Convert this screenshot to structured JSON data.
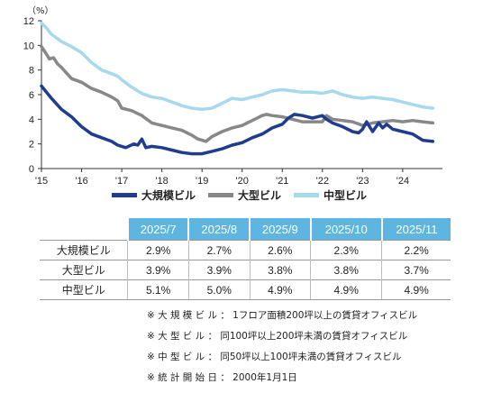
{
  "chart_data": {
    "type": "line",
    "unit_label": "（%）",
    "x_ticks": [
      "'15",
      "'16",
      "'17",
      "'18",
      "'19",
      "'20",
      "'21",
      "'22",
      "'23",
      "'24"
    ],
    "ylim": [
      0,
      12
    ],
    "y_ticks": [
      0,
      2,
      4,
      6,
      8,
      10,
      12
    ],
    "grid": false,
    "legend_position": "bottom",
    "series": [
      {
        "name": "大規模ビル",
        "color": "#1f3c8f",
        "points": [
          [
            2015.0,
            6.7
          ],
          [
            2015.25,
            5.7
          ],
          [
            2015.5,
            4.8
          ],
          [
            2015.75,
            4.2
          ],
          [
            2016.0,
            3.4
          ],
          [
            2016.25,
            2.8
          ],
          [
            2016.5,
            2.5
          ],
          [
            2016.75,
            2.2
          ],
          [
            2016.9,
            1.9
          ],
          [
            2017.1,
            1.7
          ],
          [
            2017.3,
            2.0
          ],
          [
            2017.4,
            1.9
          ],
          [
            2017.5,
            2.4
          ],
          [
            2017.6,
            1.7
          ],
          [
            2017.75,
            1.8
          ],
          [
            2018.0,
            1.7
          ],
          [
            2018.25,
            1.5
          ],
          [
            2018.5,
            1.3
          ],
          [
            2018.75,
            1.2
          ],
          [
            2019.0,
            1.2
          ],
          [
            2019.25,
            1.4
          ],
          [
            2019.5,
            1.6
          ],
          [
            2019.75,
            1.9
          ],
          [
            2020.0,
            2.1
          ],
          [
            2020.25,
            2.5
          ],
          [
            2020.5,
            2.8
          ],
          [
            2020.75,
            3.3
          ],
          [
            2021.0,
            3.6
          ],
          [
            2021.15,
            4.1
          ],
          [
            2021.3,
            4.4
          ],
          [
            2021.5,
            4.3
          ],
          [
            2021.75,
            4.1
          ],
          [
            2022.0,
            4.3
          ],
          [
            2022.1,
            4.0
          ],
          [
            2022.25,
            3.7
          ],
          [
            2022.5,
            3.4
          ],
          [
            2022.75,
            3.0
          ],
          [
            2022.9,
            2.9
          ],
          [
            2023.0,
            3.2
          ],
          [
            2023.1,
            3.8
          ],
          [
            2023.25,
            3.0
          ],
          [
            2023.4,
            3.7
          ],
          [
            2023.5,
            3.3
          ],
          [
            2023.6,
            3.6
          ],
          [
            2023.75,
            3.2
          ],
          [
            2024.0,
            3.0
          ],
          [
            2024.25,
            2.8
          ],
          [
            2024.5,
            2.3
          ],
          [
            2024.75,
            2.2
          ]
        ]
      },
      {
        "name": "大型ビル",
        "color": "#888888",
        "points": [
          [
            2015.0,
            9.9
          ],
          [
            2015.1,
            9.4
          ],
          [
            2015.2,
            8.9
          ],
          [
            2015.3,
            9.0
          ],
          [
            2015.4,
            8.5
          ],
          [
            2015.5,
            8.2
          ],
          [
            2015.75,
            7.3
          ],
          [
            2016.0,
            7.0
          ],
          [
            2016.25,
            6.5
          ],
          [
            2016.5,
            6.2
          ],
          [
            2016.75,
            5.8
          ],
          [
            2016.9,
            5.5
          ],
          [
            2017.0,
            4.9
          ],
          [
            2017.25,
            4.7
          ],
          [
            2017.5,
            4.3
          ],
          [
            2017.75,
            3.7
          ],
          [
            2018.0,
            3.5
          ],
          [
            2018.25,
            3.3
          ],
          [
            2018.5,
            3.1
          ],
          [
            2018.75,
            2.7
          ],
          [
            2018.9,
            2.4
          ],
          [
            2019.0,
            2.3
          ],
          [
            2019.1,
            2.2
          ],
          [
            2019.25,
            2.6
          ],
          [
            2019.5,
            3.0
          ],
          [
            2019.75,
            3.3
          ],
          [
            2020.0,
            3.5
          ],
          [
            2020.25,
            3.9
          ],
          [
            2020.5,
            4.3
          ],
          [
            2020.6,
            4.4
          ],
          [
            2020.75,
            4.3
          ],
          [
            2021.0,
            4.2
          ],
          [
            2021.25,
            4.0
          ],
          [
            2021.5,
            3.8
          ],
          [
            2021.75,
            3.8
          ],
          [
            2022.0,
            3.8
          ],
          [
            2022.1,
            4.3
          ],
          [
            2022.25,
            4.0
          ],
          [
            2022.5,
            3.9
          ],
          [
            2022.75,
            3.8
          ],
          [
            2023.0,
            3.5
          ],
          [
            2023.25,
            3.7
          ],
          [
            2023.5,
            3.8
          ],
          [
            2023.75,
            3.9
          ],
          [
            2024.0,
            3.8
          ],
          [
            2024.25,
            3.9
          ],
          [
            2024.5,
            3.8
          ],
          [
            2024.75,
            3.7
          ]
        ]
      },
      {
        "name": "中型ビル",
        "color": "#a6d8ee",
        "points": [
          [
            2015.0,
            11.8
          ],
          [
            2015.1,
            11.5
          ],
          [
            2015.25,
            10.9
          ],
          [
            2015.5,
            10.3
          ],
          [
            2015.75,
            9.9
          ],
          [
            2016.0,
            9.4
          ],
          [
            2016.25,
            8.6
          ],
          [
            2016.5,
            8.0
          ],
          [
            2016.75,
            7.7
          ],
          [
            2016.9,
            7.5
          ],
          [
            2017.0,
            7.2
          ],
          [
            2017.25,
            6.6
          ],
          [
            2017.5,
            6.1
          ],
          [
            2017.75,
            5.8
          ],
          [
            2018.0,
            5.7
          ],
          [
            2018.25,
            5.4
          ],
          [
            2018.5,
            5.1
          ],
          [
            2018.75,
            4.9
          ],
          [
            2019.0,
            4.8
          ],
          [
            2019.25,
            4.9
          ],
          [
            2019.5,
            5.3
          ],
          [
            2019.75,
            5.7
          ],
          [
            2020.0,
            5.6
          ],
          [
            2020.25,
            5.8
          ],
          [
            2020.5,
            6.0
          ],
          [
            2020.75,
            6.3
          ],
          [
            2021.0,
            6.4
          ],
          [
            2021.25,
            6.3
          ],
          [
            2021.5,
            6.2
          ],
          [
            2021.75,
            6.2
          ],
          [
            2022.0,
            6.1
          ],
          [
            2022.25,
            6.3
          ],
          [
            2022.5,
            6.0
          ],
          [
            2022.75,
            5.8
          ],
          [
            2023.0,
            5.7
          ],
          [
            2023.25,
            5.8
          ],
          [
            2023.5,
            5.7
          ],
          [
            2023.75,
            5.6
          ],
          [
            2024.0,
            5.4
          ],
          [
            2024.25,
            5.2
          ],
          [
            2024.5,
            5.0
          ],
          [
            2024.75,
            4.9
          ]
        ]
      }
    ]
  },
  "table": {
    "headers": [
      "2025/7",
      "2025/8",
      "2025/9",
      "2025/10",
      "2025/11"
    ],
    "rows": [
      {
        "label": "大規模ビル",
        "values": [
          "2.9%",
          "2.7%",
          "2.6%",
          "2.3%",
          "2.2%"
        ]
      },
      {
        "label": "大型ビル",
        "values": [
          "3.9%",
          "3.9%",
          "3.8%",
          "3.8%",
          "3.7%"
        ]
      },
      {
        "label": "中型ビル",
        "values": [
          "5.1%",
          "5.0%",
          "4.9%",
          "4.9%",
          "4.9%"
        ]
      }
    ]
  },
  "notes": [
    "※ 大 規 模 ビ ル ： 1フロア面積200坪以上の賃貸オフィスビル",
    "※ 大 型 ビ ル ： 同100坪以上200坪未満の賃貸オフィスビル",
    "※ 中 型 ビ ル ： 同50坪以上100坪未満の賃貸オフィスビル",
    "※ 統 計 開 始 日 ： 2000年1月1日"
  ]
}
